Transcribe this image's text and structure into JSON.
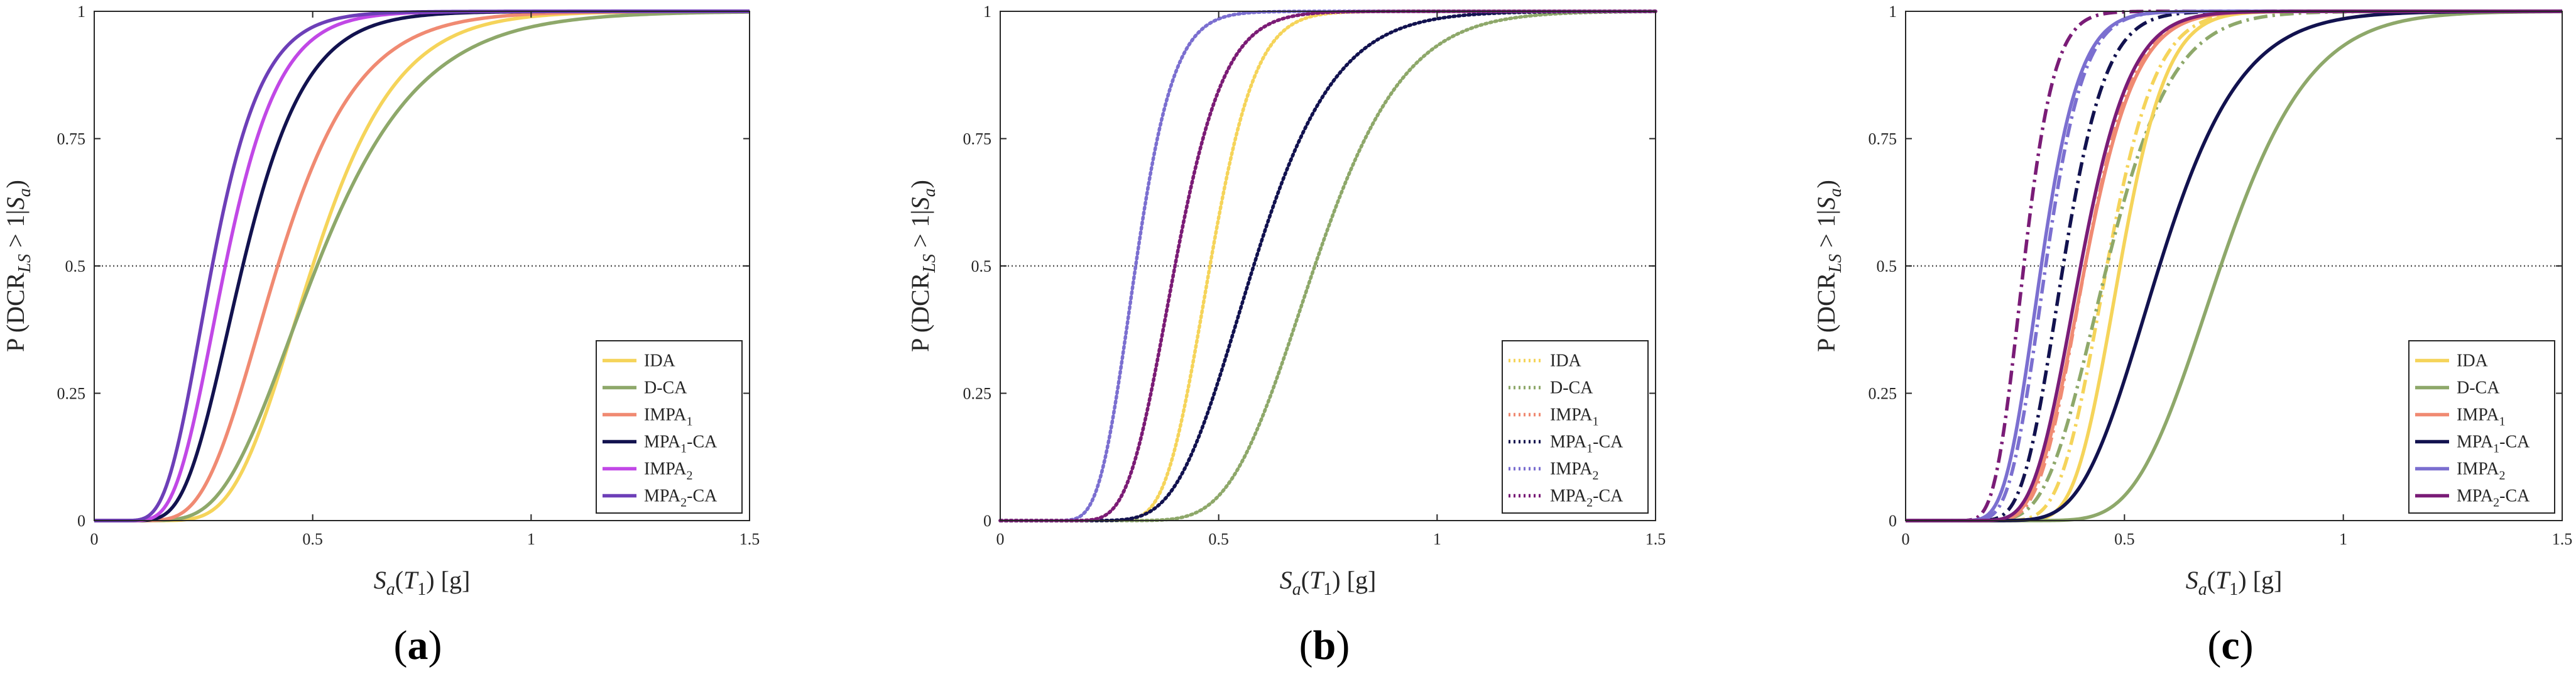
{
  "chart_data": [
    {
      "type": "line",
      "panel_label": "a",
      "xlabel": "S_a(T_1) [g]",
      "ylabel": "P (DCR_LS > 1|S_a)",
      "xlim": [
        0,
        1.5
      ],
      "ylim": [
        0,
        1
      ],
      "xticks": [
        "0",
        "0.5",
        "1",
        "1.5"
      ],
      "yticks": [
        "0",
        "0.25",
        "0.5",
        "0.75",
        "1"
      ],
      "reference_line": {
        "y": 0.5,
        "style": "dotted"
      },
      "legend_position": "bottom-right",
      "series": [
        {
          "name": "IDA",
          "name_main": "IDA",
          "sub": "",
          "suffix": "",
          "color": "#F5D45A",
          "style": "solid",
          "median": 0.5,
          "beta": 0.3
        },
        {
          "name": "D-CA",
          "name_main": "D-CA",
          "sub": "",
          "suffix": "",
          "color": "#8EA86A",
          "style": "solid",
          "median": 0.51,
          "beta": 0.36
        },
        {
          "name": "IMPA1",
          "name_main": "IMPA",
          "sub": "1",
          "suffix": "",
          "color": "#F08A72",
          "style": "solid",
          "median": 0.42,
          "beta": 0.34
        },
        {
          "name": "MPA1-CA",
          "name_main": "MPA",
          "sub": "1",
          "suffix": "-CA",
          "color": "#12124F",
          "style": "solid",
          "median": 0.34,
          "beta": 0.33
        },
        {
          "name": "IMPA2",
          "name_main": "IMPA",
          "sub": "2",
          "suffix": "",
          "color": "#C148E6",
          "style": "solid",
          "median": 0.3,
          "beta": 0.32
        },
        {
          "name": "MPA2-CA",
          "name_main": "MPA",
          "sub": "2",
          "suffix": "-CA",
          "color": "#6D3FB8",
          "style": "solid",
          "median": 0.27,
          "beta": 0.33
        }
      ]
    },
    {
      "type": "line",
      "panel_label": "b",
      "xlabel": "S_a(T_1) [g]",
      "ylabel": "P (DCR_LS > 1|S_a)",
      "xlim": [
        0,
        1.5
      ],
      "ylim": [
        0,
        1
      ],
      "xticks": [
        "0",
        "0.5",
        "1",
        "1.5"
      ],
      "yticks": [
        "0",
        "0.25",
        "0.5",
        "0.75",
        "1"
      ],
      "reference_line": {
        "y": 0.5,
        "style": "dotted"
      },
      "legend_position": "bottom-right",
      "series": [
        {
          "name": "IDA",
          "name_main": "IDA",
          "sub": "",
          "suffix": "",
          "color": "#F5D45A",
          "style": "dotted",
          "median": 0.48,
          "beta": 0.17
        },
        {
          "name": "D-CA",
          "name_main": "D-CA",
          "sub": "",
          "suffix": "",
          "color": "#8EA86A",
          "style": "dotted",
          "median": 0.72,
          "beta": 0.22
        },
        {
          "name": "IMPA1",
          "name_main": "IMPA",
          "sub": "1",
          "suffix": "",
          "color": "#F08A72",
          "style": "dotted",
          "median": 0.4,
          "beta": 0.22
        },
        {
          "name": "MPA1-CA",
          "name_main": "MPA",
          "sub": "1",
          "suffix": "-CA",
          "color": "#12124F",
          "style": "dotted",
          "median": 0.58,
          "beta": 0.25
        },
        {
          "name": "IMPA2",
          "name_main": "IMPA",
          "sub": "2",
          "suffix": "",
          "color": "#7B6FD0",
          "style": "dotted",
          "median": 0.31,
          "beta": 0.22
        },
        {
          "name": "MPA2-CA",
          "name_main": "MPA",
          "sub": "2",
          "suffix": "-CA",
          "color": "#7A1C77",
          "style": "dotted",
          "median": 0.4,
          "beta": 0.22
        }
      ]
    },
    {
      "type": "line",
      "panel_label": "c",
      "xlabel": "S_a(T_1) [g]",
      "ylabel": "P (DCR_LS > 1|S_a)",
      "xlim": [
        0,
        1.5
      ],
      "ylim": [
        0,
        1
      ],
      "xticks": [
        "0",
        "0.5",
        "1",
        "1.5"
      ],
      "yticks": [
        "0",
        "0.25",
        "0.5",
        "0.75",
        "1"
      ],
      "reference_line": {
        "y": 0.5,
        "style": "dotted"
      },
      "legend_position": "bottom-right",
      "series": [
        {
          "name": "IDA",
          "name_main": "IDA",
          "sub": "",
          "suffix": "",
          "color": "#F5D45A",
          "style": "solid",
          "median": 0.49,
          "beta": 0.17
        },
        {
          "name": "D-CA",
          "name_main": "D-CA",
          "sub": "",
          "suffix": "",
          "color": "#8EA86A",
          "style": "solid",
          "median": 0.72,
          "beta": 0.22
        },
        {
          "name": "IMPA1",
          "name_main": "IMPA",
          "sub": "1",
          "suffix": "",
          "color": "#F08A72",
          "style": "solid",
          "median": 0.41,
          "beta": 0.22
        },
        {
          "name": "MPA1-CA",
          "name_main": "MPA",
          "sub": "1",
          "suffix": "-CA",
          "color": "#12124F",
          "style": "solid",
          "median": 0.58,
          "beta": 0.25
        },
        {
          "name": "IMPA2",
          "name_main": "IMPA",
          "sub": "2",
          "suffix": "",
          "color": "#7B6FD0",
          "style": "solid",
          "median": 0.31,
          "beta": 0.22
        },
        {
          "name": "MPA2-CA",
          "name_main": "MPA",
          "sub": "2",
          "suffix": "-CA",
          "color": "#7A1C77",
          "style": "solid",
          "median": 0.4,
          "beta": 0.22
        }
      ],
      "extra_series": [
        {
          "name": "IDA",
          "color": "#F5D45A",
          "style": "dashdot",
          "median": 0.46,
          "beta": 0.19
        },
        {
          "name": "D-CA",
          "color": "#8EA86A",
          "style": "dashdot",
          "median": 0.46,
          "beta": 0.25
        },
        {
          "name": "IMPA1",
          "color": "#F08A72",
          "style": "dashdot",
          "median": 0.41,
          "beta": 0.21
        },
        {
          "name": "MPA1-CA",
          "color": "#12124F",
          "style": "dashdot",
          "median": 0.36,
          "beta": 0.21
        },
        {
          "name": "IMPA2",
          "color": "#7B6FD0",
          "style": "dashdot",
          "median": 0.32,
          "beta": 0.21
        },
        {
          "name": "MPA2-CA",
          "color": "#7A1C77",
          "style": "dashdot",
          "median": 0.27,
          "beta": 0.2
        }
      ]
    }
  ]
}
